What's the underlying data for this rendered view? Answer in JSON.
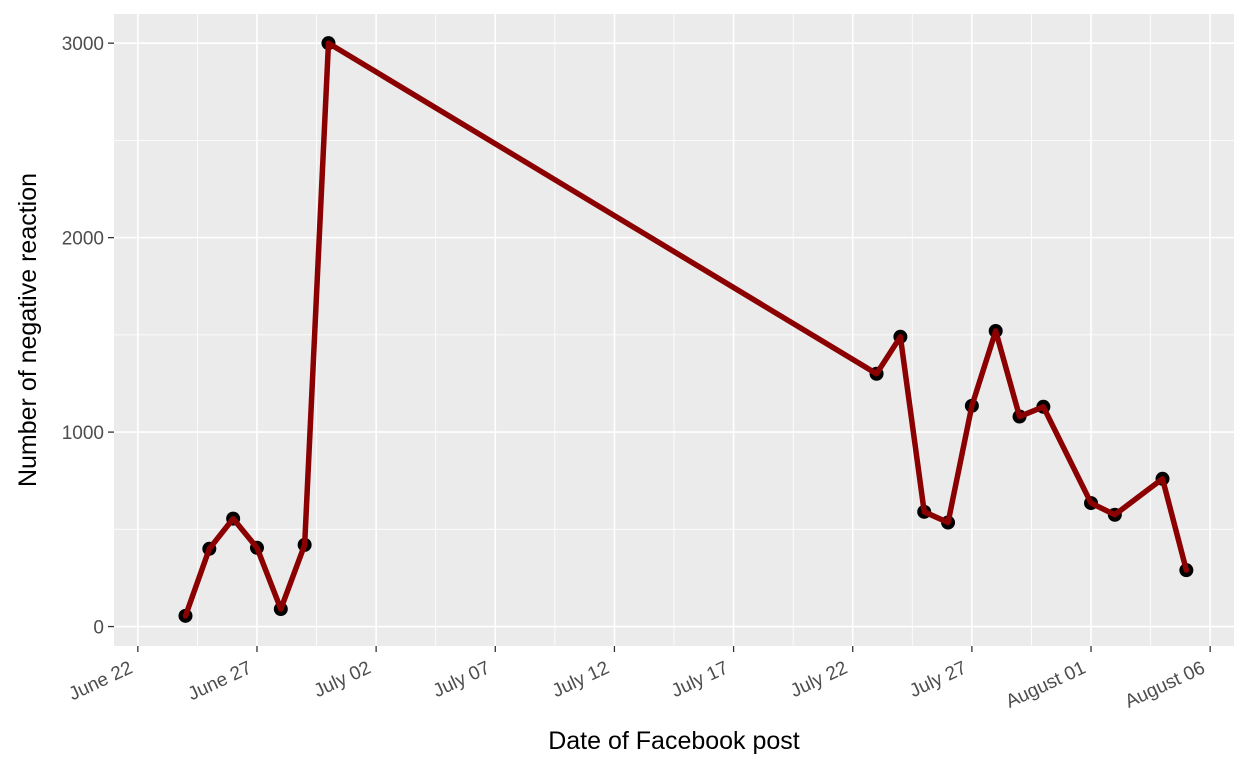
{
  "colors": {
    "panel": "#ebebeb",
    "grid_major": "#ffffff",
    "line": "#8b0000",
    "point": "#000000",
    "tick": "#333333",
    "text": "#4d4d4d"
  },
  "chart_data": {
    "type": "line",
    "xlabel": "Date of Facebook post",
    "ylabel": "Number of negative reaction",
    "x_axis_type": "date",
    "xlim": [
      "2022-06-21",
      "2022-08-07"
    ],
    "ylim": [
      -100,
      3150
    ],
    "grid": true,
    "legend": "none",
    "x_ticks": [
      {
        "date": "2022-06-22",
        "label": "June 22"
      },
      {
        "date": "2022-06-27",
        "label": "June 27"
      },
      {
        "date": "2022-07-02",
        "label": "July 02"
      },
      {
        "date": "2022-07-07",
        "label": "July 07"
      },
      {
        "date": "2022-07-12",
        "label": "July 12"
      },
      {
        "date": "2022-07-17",
        "label": "July 17"
      },
      {
        "date": "2022-07-22",
        "label": "July 22"
      },
      {
        "date": "2022-07-27",
        "label": "July 27"
      },
      {
        "date": "2022-08-01",
        "label": "August 01"
      },
      {
        "date": "2022-08-06",
        "label": "August 06"
      }
    ],
    "y_ticks": [
      {
        "value": 0,
        "label": "0"
      },
      {
        "value": 1000,
        "label": "1000"
      },
      {
        "value": 2000,
        "label": "2000"
      },
      {
        "value": 3000,
        "label": "3000"
      }
    ],
    "series": [
      {
        "points": [
          {
            "x": "2022-06-24",
            "y": 55
          },
          {
            "x": "2022-06-25",
            "y": 400
          },
          {
            "x": "2022-06-26",
            "y": 555
          },
          {
            "x": "2022-06-27",
            "y": 405
          },
          {
            "x": "2022-06-28",
            "y": 90
          },
          {
            "x": "2022-06-29",
            "y": 420
          },
          {
            "x": "2022-06-30",
            "y": 3000
          },
          {
            "x": "2022-07-23",
            "y": 1300
          },
          {
            "x": "2022-07-24",
            "y": 1490
          },
          {
            "x": "2022-07-25",
            "y": 590
          },
          {
            "x": "2022-07-26",
            "y": 535
          },
          {
            "x": "2022-07-27",
            "y": 1135
          },
          {
            "x": "2022-07-28",
            "y": 1520
          },
          {
            "x": "2022-07-29",
            "y": 1080
          },
          {
            "x": "2022-07-30",
            "y": 1130
          },
          {
            "x": "2022-08-01",
            "y": 635
          },
          {
            "x": "2022-08-02",
            "y": 575
          },
          {
            "x": "2022-08-04",
            "y": 760
          },
          {
            "x": "2022-08-05",
            "y": 290
          }
        ]
      }
    ]
  }
}
